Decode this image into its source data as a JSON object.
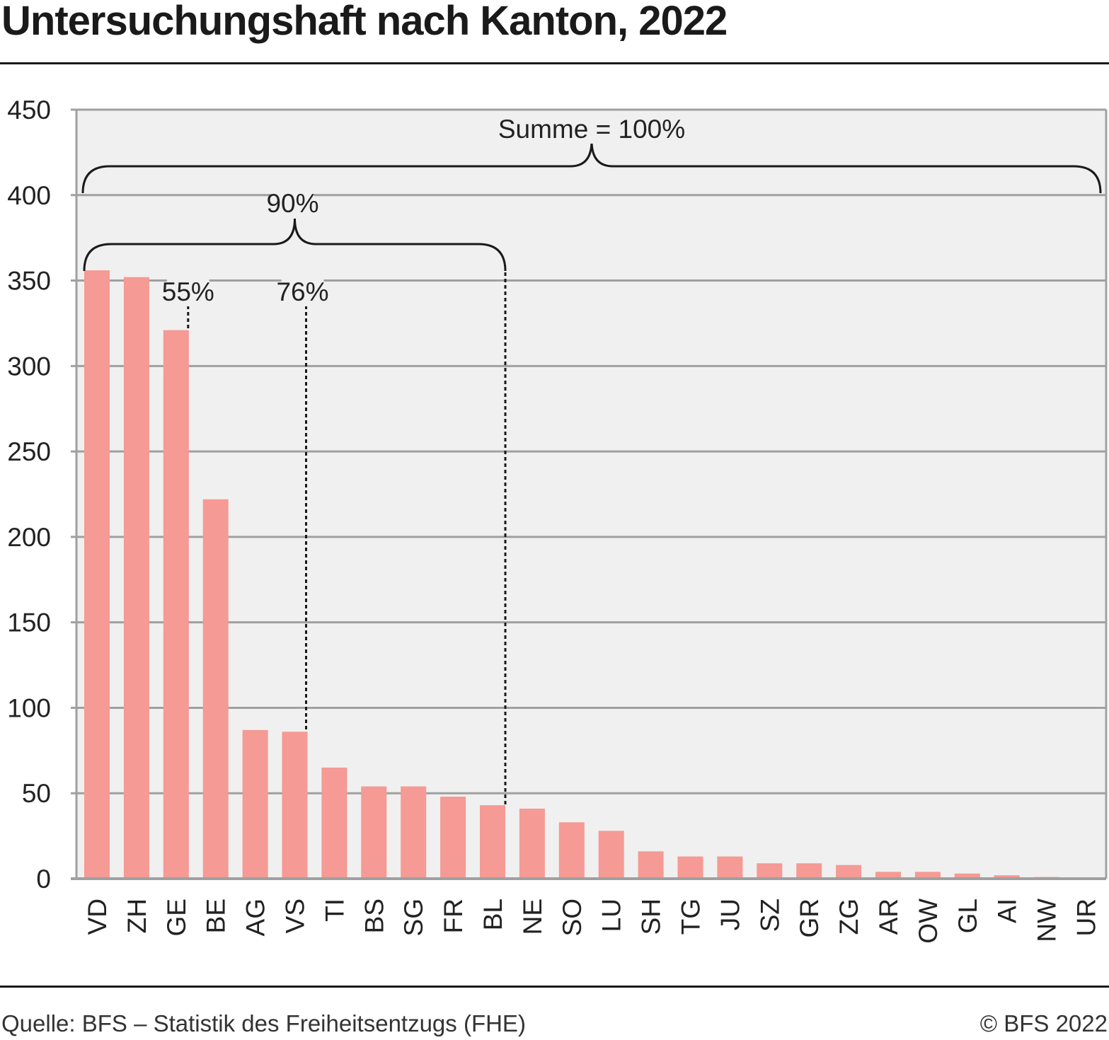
{
  "title": "Untersuchungshaft nach Kanton, 2022",
  "footer": {
    "source": "Quelle: BFS – Statistik des Freiheitsentzugs (FHE)",
    "copyright": "© BFS 2022"
  },
  "chart_data": {
    "type": "bar",
    "title": "Untersuchungshaft nach Kanton, 2022",
    "xlabel": "",
    "ylabel": "",
    "ylim": [
      0,
      450
    ],
    "yticks": [
      0,
      50,
      100,
      150,
      200,
      250,
      300,
      350,
      400,
      450
    ],
    "grid": true,
    "categories": [
      "VD",
      "ZH",
      "GE",
      "BE",
      "AG",
      "VS",
      "TI",
      "BS",
      "SG",
      "FR",
      "BL",
      "NE",
      "SO",
      "LU",
      "SH",
      "TG",
      "JU",
      "SZ",
      "GR",
      "ZG",
      "AR",
      "OW",
      "GL",
      "AI",
      "NW",
      "UR"
    ],
    "values": [
      356,
      352,
      321,
      222,
      87,
      86,
      65,
      54,
      54,
      48,
      43,
      41,
      33,
      28,
      16,
      13,
      13,
      9,
      9,
      8,
      4,
      4,
      3,
      2,
      1,
      0
    ],
    "colors": {
      "bar": "#f59a94",
      "plot_bg": "#f0f0f0",
      "grid": "#a0a0a0"
    },
    "annotations": {
      "total": {
        "label": "Summe = 100%",
        "from": "VD",
        "to": "UR"
      },
      "p90": {
        "label": "90%",
        "from": "VD",
        "to": "BL"
      },
      "p76": {
        "label": "76%",
        "at": "VS"
      },
      "p55": {
        "label": "55%",
        "at": "GE"
      }
    }
  }
}
